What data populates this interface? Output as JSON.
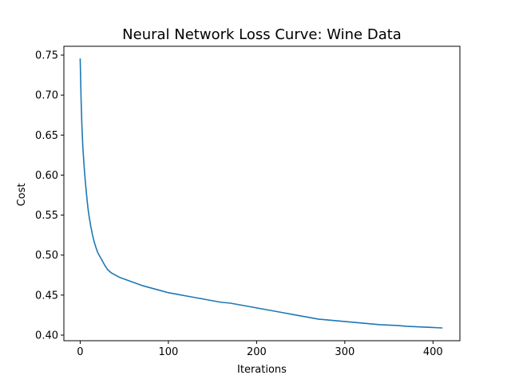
{
  "chart_data": {
    "type": "line",
    "title": "Neural Network Loss Curve: Wine Data",
    "xlabel": "Iterations",
    "ylabel": "Cost",
    "xlim": [
      -18.5,
      430.5
    ],
    "ylim": [
      0.393,
      0.761
    ],
    "xticks": [
      0,
      100,
      200,
      300,
      400
    ],
    "xtick_labels": [
      "0",
      "100",
      "200",
      "300",
      "400"
    ],
    "yticks": [
      0.4,
      0.45,
      0.5,
      0.55,
      0.6,
      0.65,
      0.7,
      0.75
    ],
    "ytick_labels": [
      "0.40",
      "0.45",
      "0.50",
      "0.55",
      "0.60",
      "0.65",
      "0.70",
      "0.75"
    ],
    "grid": false,
    "series": [
      {
        "color": "#1f77b4",
        "x": [
          0,
          1,
          2,
          3,
          4,
          5,
          6,
          7,
          8,
          9,
          10,
          12,
          14,
          16,
          18,
          20,
          22,
          25,
          28,
          31,
          35,
          40,
          45,
          50,
          60,
          70,
          80,
          90,
          100,
          110,
          120,
          130,
          140,
          150,
          160,
          170,
          180,
          190,
          200,
          210,
          220,
          230,
          240,
          250,
          260,
          270,
          280,
          290,
          300,
          310,
          320,
          330,
          340,
          350,
          360,
          370,
          380,
          390,
          400,
          405,
          410
        ],
        "values": [
          0.745,
          0.695,
          0.66,
          0.635,
          0.618,
          0.603,
          0.59,
          0.578,
          0.567,
          0.557,
          0.549,
          0.536,
          0.525,
          0.516,
          0.509,
          0.503,
          0.499,
          0.493,
          0.487,
          0.482,
          0.478,
          0.475,
          0.472,
          0.47,
          0.466,
          0.462,
          0.459,
          0.456,
          0.453,
          0.451,
          0.449,
          0.447,
          0.445,
          0.443,
          0.441,
          0.44,
          0.438,
          0.436,
          0.434,
          0.432,
          0.43,
          0.428,
          0.426,
          0.424,
          0.422,
          0.42,
          0.419,
          0.418,
          0.417,
          0.416,
          0.415,
          0.414,
          0.413,
          0.4125,
          0.412,
          0.411,
          0.4105,
          0.41,
          0.4095,
          0.4092,
          0.409
        ]
      }
    ]
  }
}
